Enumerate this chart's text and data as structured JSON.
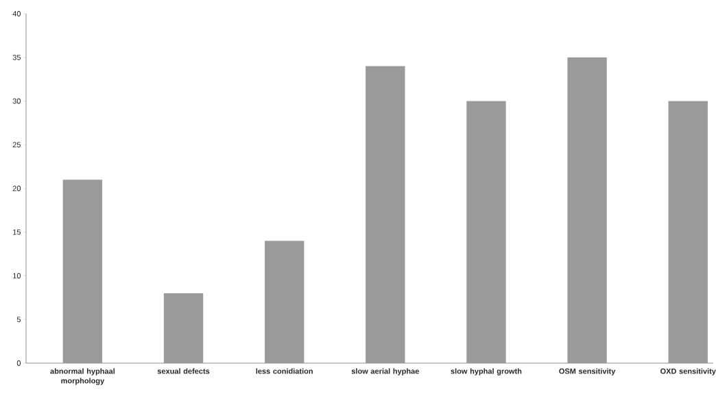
{
  "chart_data": {
    "type": "bar",
    "categories": [
      "abnormal hyphaal morphology",
      "sexual defects",
      "less conidiation",
      "slow aerial hyphae",
      "slow hyphal growth",
      "OSM sensitivity",
      "OXD sensitivity"
    ],
    "values": [
      21,
      8,
      14,
      34,
      30,
      35,
      30
    ],
    "color": "#9a9a9a",
    "ylim": [
      0,
      40
    ],
    "yticks": [
      0,
      5,
      10,
      15,
      20,
      25,
      30,
      35,
      40
    ]
  }
}
